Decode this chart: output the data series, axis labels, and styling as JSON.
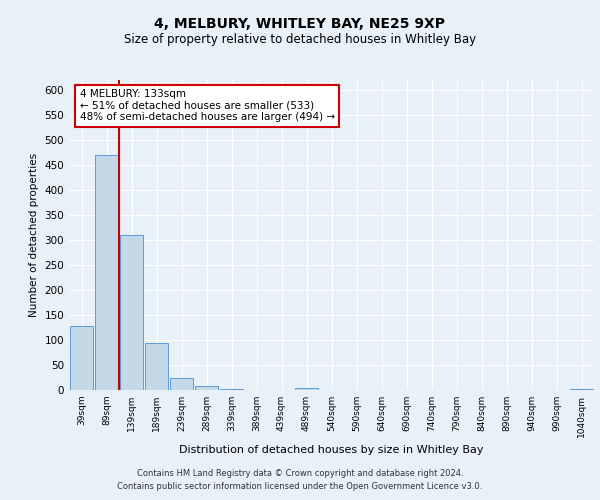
{
  "title": "4, MELBURY, WHITLEY BAY, NE25 9XP",
  "subtitle": "Size of property relative to detached houses in Whitley Bay",
  "xlabel": "Distribution of detached houses by size in Whitley Bay",
  "ylabel": "Number of detached properties",
  "categories": [
    "39sqm",
    "89sqm",
    "139sqm",
    "189sqm",
    "239sqm",
    "289sqm",
    "339sqm",
    "389sqm",
    "439sqm",
    "489sqm",
    "540sqm",
    "590sqm",
    "640sqm",
    "690sqm",
    "740sqm",
    "790sqm",
    "840sqm",
    "890sqm",
    "940sqm",
    "990sqm",
    "1040sqm"
  ],
  "values": [
    128,
    470,
    310,
    95,
    25,
    8,
    3,
    1,
    0,
    4,
    0,
    0,
    1,
    0,
    0,
    1,
    0,
    0,
    0,
    0,
    3
  ],
  "bar_color": "#c5d8e8",
  "bar_edge_color": "#5b9bd5",
  "marker_line_color": "#cc0000",
  "annotation_text": "4 MELBURY: 133sqm\n← 51% of detached houses are smaller (533)\n48% of semi-detached houses are larger (494) →",
  "annotation_box_color": "#ffffff",
  "annotation_box_edge": "#cc0000",
  "ylim": [
    0,
    620
  ],
  "yticks": [
    0,
    50,
    100,
    150,
    200,
    250,
    300,
    350,
    400,
    450,
    500,
    550,
    600
  ],
  "footer_line1": "Contains HM Land Registry data © Crown copyright and database right 2024.",
  "footer_line2": "Contains public sector information licensed under the Open Government Licence v3.0.",
  "bg_color": "#e8f0f8",
  "plot_bg_color": "#e8f0f8",
  "grid_color": "#ffffff"
}
